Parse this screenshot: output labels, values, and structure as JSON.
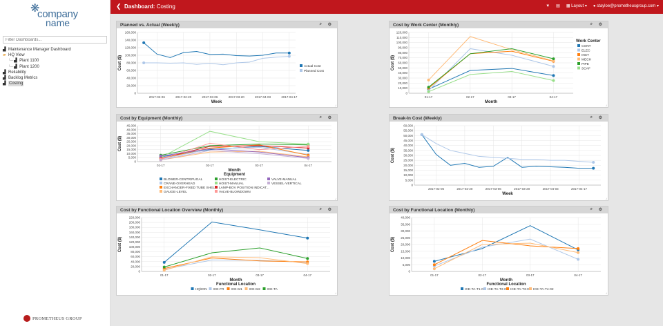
{
  "logo": {
    "line1": "company",
    "line2": "name"
  },
  "sidebar": {
    "filter_placeholder": "Filter Dashboards...",
    "items": [
      {
        "label": "Maintenance Manager Dashboard",
        "icon": "bar-chart-icon",
        "indent": 0
      },
      {
        "label": "HQ View",
        "icon": "folder-icon",
        "indent": 0
      },
      {
        "label": "Plant 1100",
        "icon": "bar-chart-icon",
        "indent": 2
      },
      {
        "label": "Plant 1200",
        "icon": "bar-chart-icon",
        "indent": 2
      },
      {
        "label": "Reliability",
        "icon": "bar-chart-icon",
        "indent": 0
      },
      {
        "label": "Backlog Metrics",
        "icon": "bar-chart-icon",
        "indent": 0
      },
      {
        "label": "Costing",
        "icon": "bar-chart-icon",
        "indent": 0,
        "selected": true
      }
    ],
    "footer_logo": "PROMETHEUS GROUP"
  },
  "topbar": {
    "prefix": "Dashboard:",
    "title": "Costing",
    "layout": "Layout",
    "user": "stayloe@prometheusgroup.com"
  },
  "colors": {
    "accent": "#c0171d"
  },
  "panels": [
    {
      "title": "Planned vs. Actual (Weekly)"
    },
    {
      "title": "Cost by Work Center (Monthly)"
    },
    {
      "title": "Cost by Equipment (Monthly)"
    },
    {
      "title": "Break-In Cost (Weekly)"
    },
    {
      "title": "Cost by Functional Location Overview (Monthly)"
    },
    {
      "title": "Cost by Functional Location (Monthly)"
    }
  ],
  "chart_data": [
    {
      "type": "line",
      "title": "Planned vs. Actual (Weekly)",
      "xlabel": "Week",
      "ylabel": "Cost ($)",
      "ylim": [
        0,
        160000
      ],
      "yticks": [
        0,
        20000,
        40000,
        60000,
        80000,
        100000,
        120000,
        140000,
        160000
      ],
      "xticks": [
        "2017-02-06",
        "2017-02-20",
        "2017-03-06",
        "2017-03-20",
        "2017-04-03",
        "2017-04-17"
      ],
      "n": 12,
      "tick_idx": [
        1,
        3,
        5,
        7,
        9,
        11
      ],
      "legend": "right",
      "series": [
        {
          "name": "Actual Cost",
          "color": "#1f77b4",
          "values": [
            133000,
            103000,
            94000,
            107000,
            110000,
            102000,
            103000,
            99000,
            98000,
            100000,
            106000,
            106000
          ]
        },
        {
          "name": "Planned Cost",
          "color": "#aec7e8",
          "values": [
            80000,
            80000,
            79000,
            80000,
            76000,
            79000,
            75000,
            80000,
            82000,
            92000,
            95000,
            97000
          ]
        }
      ]
    },
    {
      "type": "line",
      "title": "Cost by Work Center (Monthly)",
      "xlabel": "Month",
      "ylabel": "Cost ($)",
      "ylim": [
        0,
        120000
      ],
      "yticks": [
        0,
        10000,
        20000,
        30000,
        40000,
        50000,
        60000,
        70000,
        80000,
        90000,
        100000,
        110000,
        120000
      ],
      "categories": [
        "01-17",
        "02-17",
        "03-17",
        "04-17"
      ],
      "legend_title": "Work Center",
      "series": [
        {
          "name": "CONT",
          "color": "#1f77b4",
          "values": [
            8000,
            45000,
            49000,
            35000
          ]
        },
        {
          "name": "ELEC",
          "color": "#aec7e8",
          "values": [
            5000,
            88000,
            75000,
            53000
          ]
        },
        {
          "name": "INST",
          "color": "#ff7f0e",
          "values": [
            10000,
            78000,
            83000,
            63000
          ]
        },
        {
          "name": "MECH",
          "color": "#ffbb78",
          "values": [
            26000,
            112000,
            86000,
            64000
          ]
        },
        {
          "name": "PIPE",
          "color": "#2ca02c",
          "values": [
            12000,
            78000,
            88000,
            68000
          ]
        },
        {
          "name": "SCAF",
          "color": "#98df8a",
          "values": [
            3000,
            37000,
            43000,
            25000
          ]
        }
      ]
    },
    {
      "type": "line",
      "title": "Cost by Equipment (Monthly)",
      "xlabel": "Month",
      "ylabel": "Cost ($)",
      "legend_title": "Equipment",
      "ylim": [
        0,
        45000
      ],
      "yticks": [
        0,
        5000,
        10000,
        15000,
        20000,
        25000,
        30000,
        35000,
        40000,
        45000
      ],
      "categories": [
        "01-17",
        "02-17",
        "03-17",
        "04-17"
      ],
      "series": [
        {
          "name": "BLOWER-CENTRIFUGAL",
          "color": "#1f77b4",
          "values": [
            6000,
            15000,
            19000,
            14000
          ]
        },
        {
          "name": "CRANE-OVERHEAD",
          "color": "#aec7e8",
          "values": [
            3000,
            16000,
            18000,
            9000
          ]
        },
        {
          "name": "EXCHANGER-FIXED TUBE SHEL...",
          "color": "#ff7f0e",
          "values": [
            4000,
            17000,
            21000,
            8000
          ]
        },
        {
          "name": "GAUGE-LEVEL",
          "color": "#ffbb78",
          "values": [
            2000,
            12000,
            13000,
            6000
          ]
        },
        {
          "name": "HOIST-ELECTRIC",
          "color": "#2ca02c",
          "values": [
            8000,
            20000,
            22000,
            21000
          ]
        },
        {
          "name": "HOIST-MANUAL",
          "color": "#98df8a",
          "values": [
            5000,
            38000,
            25000,
            22000
          ]
        },
        {
          "name": "LAMP-BOV POSITION INDICAT...",
          "color": "#d62728",
          "values": [
            4000,
            19000,
            20000,
            17000
          ]
        },
        {
          "name": "VALVE-BLOWDOWN",
          "color": "#ff9896",
          "values": [
            3000,
            23000,
            15000,
            19000
          ]
        },
        {
          "name": "VALVE-MANUAL",
          "color": "#9467bd",
          "values": [
            7000,
            16000,
            12000,
            5000
          ]
        },
        {
          "name": "VESSEL-VERTICAL",
          "color": "#c5b0d5",
          "values": [
            2000,
            14000,
            10000,
            4000
          ]
        }
      ]
    },
    {
      "type": "line",
      "title": "Break-In Cost (Weekly)",
      "xlabel": "Week",
      "ylabel": "Cost ($)",
      "ylim": [
        0,
        60000
      ],
      "yticks": [
        0,
        5000,
        10000,
        15000,
        20000,
        25000,
        30000,
        35000,
        40000,
        45000,
        50000,
        55000,
        60000
      ],
      "xticks": [
        "2017-02-06",
        "2017-02-20",
        "2017-03-06",
        "2017-03-20",
        "2017-04-03",
        "2017-04-17"
      ],
      "n": 13,
      "tick_idx": [
        1,
        3,
        5,
        7,
        9,
        11
      ],
      "series": [
        {
          "name": "Actual",
          "color": "#1f77b4",
          "values": [
            51000,
            31000,
            20000,
            22000,
            18000,
            19000,
            28000,
            18000,
            19000,
            18500,
            18000,
            17000,
            17000
          ]
        },
        {
          "name": "Planned",
          "color": "#aec7e8",
          "values": [
            51000,
            42000,
            35000,
            32000,
            29000,
            28000,
            27000,
            26000,
            26000,
            25000,
            25000,
            24000,
            23000
          ]
        }
      ]
    },
    {
      "type": "line",
      "title": "Cost by Functional Location Overview (Monthly)",
      "xlabel": "Month",
      "ylabel": "Cost ($)",
      "legend_title": "Functional Location",
      "ylim": [
        0,
        220000
      ],
      "yticks": [
        0,
        20000,
        40000,
        60000,
        80000,
        100000,
        120000,
        140000,
        160000,
        180000,
        200000,
        220000
      ],
      "categories": [
        "01-17",
        "02-17",
        "03-17",
        "04-17"
      ],
      "series": [
        {
          "name": "HQ\\ION",
          "color": "#1f77b4",
          "values": [
            37000,
            202000,
            170000,
            136000
          ]
        },
        {
          "name": "ICE-FR",
          "color": "#aec7e8",
          "values": [
            8000,
            47000,
            45000,
            37000
          ]
        },
        {
          "name": "ICE-M1",
          "color": "#ff7f0e",
          "values": [
            12000,
            55000,
            43000,
            39000
          ]
        },
        {
          "name": "ICE-M2",
          "color": "#ffbb78",
          "values": [
            5000,
            60000,
            56000,
            32000
          ]
        },
        {
          "name": "ICE-TA",
          "color": "#2ca02c",
          "values": [
            18000,
            76000,
            96000,
            53000
          ]
        }
      ]
    },
    {
      "type": "line",
      "title": "Cost by Functional Location (Monthly)",
      "xlabel": "Month",
      "ylabel": "Cost ($)",
      "legend_title": "Functional Location",
      "ylim": [
        0,
        40000
      ],
      "yticks": [
        0,
        5000,
        10000,
        15000,
        20000,
        25000,
        30000,
        35000,
        40000
      ],
      "categories": [
        "01-17",
        "02-17",
        "03-17",
        "04-17"
      ],
      "series": [
        {
          "name": "ICE-TA-T1-02",
          "color": "#1f77b4",
          "values": [
            7500,
            17000,
            34000,
            16000
          ]
        },
        {
          "name": "ICE-TA-T2-02",
          "color": "#aec7e8",
          "values": [
            4000,
            18000,
            24000,
            9000
          ]
        },
        {
          "name": "ICE-TA-T3-02",
          "color": "#ff7f0e",
          "values": [
            5000,
            23000,
            19000,
            17000
          ]
        },
        {
          "name": "ICE-TA-T4-02",
          "color": "#ffbb78",
          "values": [
            2000,
            20000,
            21000,
            14000
          ]
        }
      ]
    }
  ]
}
